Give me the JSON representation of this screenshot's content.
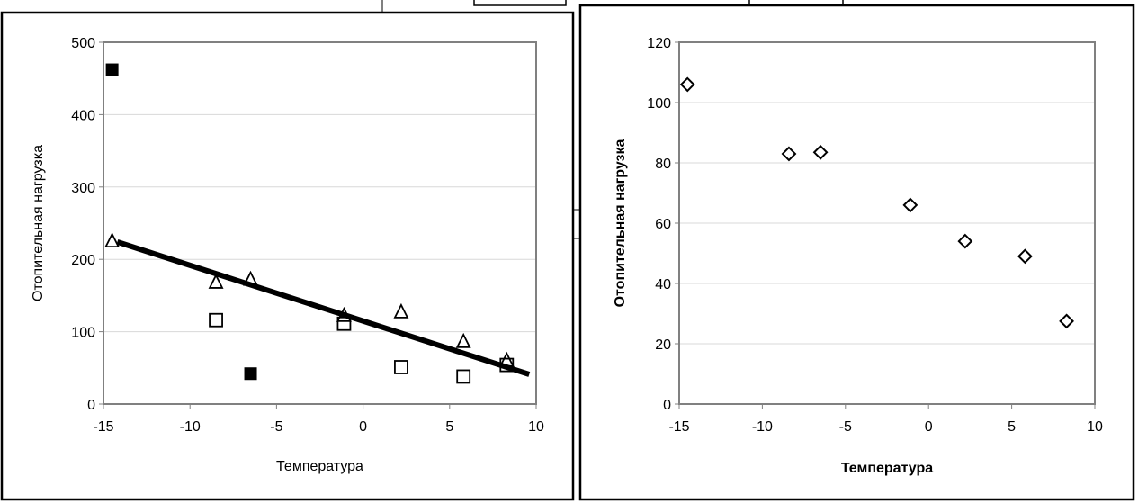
{
  "chart_data": [
    {
      "type": "scatter",
      "title": "",
      "xlabel": "Температура",
      "ylabel": "Отопительная нагрузка",
      "xlim": [
        -15,
        10
      ],
      "ylim": [
        0,
        500
      ],
      "xticks": [
        -15,
        -10,
        -5,
        0,
        5,
        10
      ],
      "yticks": [
        0,
        100,
        200,
        300,
        400,
        500
      ],
      "grid": "horizontal",
      "series": [
        {
          "name": "filled-squares",
          "marker": "filled-square",
          "x": [
            -14.5,
            -6.5
          ],
          "y": [
            462,
            42
          ]
        },
        {
          "name": "triangles",
          "marker": "open-triangle",
          "x": [
            -14.5,
            -8.5,
            -6.5,
            -1.1,
            2.2,
            5.8,
            8.3
          ],
          "y": [
            225,
            168,
            172,
            122,
            127,
            86,
            60
          ]
        },
        {
          "name": "open-squares",
          "marker": "open-square",
          "x": [
            -8.5,
            -1.1,
            2.2,
            5.8,
            8.3
          ],
          "y": [
            116,
            111,
            51,
            38,
            54
          ]
        },
        {
          "name": "trend-line",
          "marker": "line",
          "x": [
            -14.2,
            9.6
          ],
          "y": [
            224,
            41
          ]
        }
      ]
    },
    {
      "type": "scatter",
      "title": "",
      "xlabel": "Температура",
      "ylabel": "Отопительная нагрузка",
      "xlim": [
        -15,
        10
      ],
      "ylim": [
        0,
        120
      ],
      "xticks": [
        -15,
        -10,
        -5,
        0,
        5,
        10
      ],
      "yticks": [
        0,
        20,
        40,
        60,
        80,
        100,
        120
      ],
      "grid": "horizontal",
      "series": [
        {
          "name": "diamonds",
          "marker": "open-diamond",
          "x": [
            -14.5,
            -8.4,
            -6.5,
            -1.1,
            2.2,
            5.8,
            8.3
          ],
          "y": [
            106,
            83,
            83.5,
            66,
            54,
            49,
            27.5
          ]
        }
      ]
    }
  ]
}
